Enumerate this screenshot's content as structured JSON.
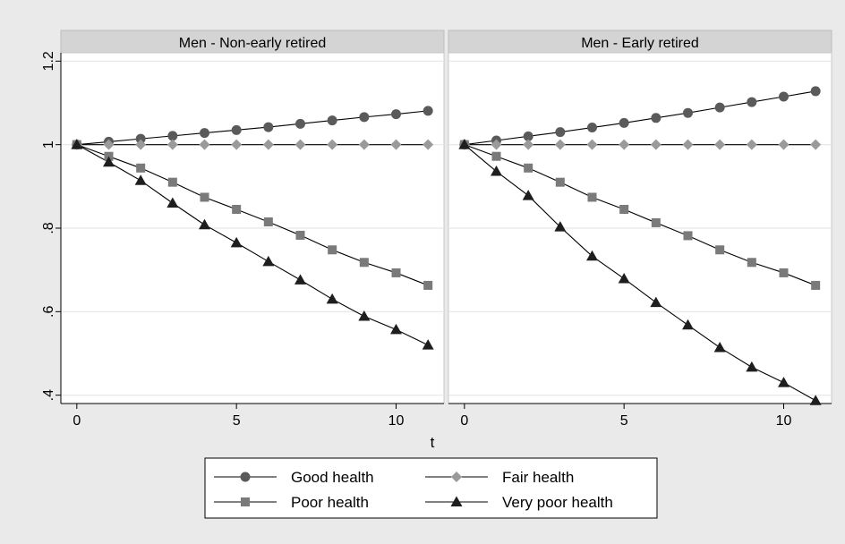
{
  "chart_data": {
    "type": "line",
    "xlabel": "t",
    "ylabel": "",
    "xlim": [
      -0.5,
      11.5
    ],
    "ylim": [
      0.38,
      1.22
    ],
    "x_ticks": [
      0,
      5,
      10
    ],
    "y_ticks": [
      0.4,
      0.6,
      0.8,
      1.0,
      1.2
    ],
    "x_tick_labels": [
      "0",
      "5",
      "10"
    ],
    "y_tick_labels": [
      ".4",
      ".6",
      ".8",
      "1",
      "1.2"
    ],
    "grid": true,
    "legend_position": "bottom-center",
    "x": [
      0,
      1,
      2,
      3,
      4,
      5,
      6,
      7,
      8,
      9,
      10,
      11
    ],
    "series_styles": [
      {
        "marker": "circle",
        "color": "#5a5a5a"
      },
      {
        "marker": "diamond",
        "color": "#9a9a9a"
      },
      {
        "marker": "square",
        "color": "#7a7a7a"
      },
      {
        "marker": "triangle",
        "color": "#1e1e1e"
      }
    ],
    "panels": [
      {
        "title": "Men - Non-early retired",
        "series": [
          {
            "name": "Good health",
            "values": [
              1.0,
              1.007,
              1.014,
              1.021,
              1.028,
              1.035,
              1.042,
              1.05,
              1.058,
              1.066,
              1.073,
              1.081
            ]
          },
          {
            "name": "Fair health",
            "values": [
              1.0,
              1.0,
              1.0,
              1.0,
              1.0,
              1.0,
              1.0,
              1.0,
              1.0,
              1.0,
              1.0,
              1.0
            ]
          },
          {
            "name": "Poor health",
            "values": [
              1.0,
              0.972,
              0.944,
              0.91,
              0.874,
              0.845,
              0.815,
              0.783,
              0.748,
              0.718,
              0.693,
              0.663
            ]
          },
          {
            "name": "Very poor health",
            "values": [
              1.0,
              0.958,
              0.914,
              0.86,
              0.808,
              0.765,
              0.72,
              0.676,
              0.63,
              0.589,
              0.557,
              0.52
            ]
          }
        ]
      },
      {
        "title": "Men - Early retired",
        "series": [
          {
            "name": "Good health",
            "values": [
              1.0,
              1.01,
              1.02,
              1.03,
              1.041,
              1.052,
              1.064,
              1.076,
              1.089,
              1.102,
              1.115,
              1.128
            ]
          },
          {
            "name": "Fair health",
            "values": [
              1.0,
              1.0,
              1.0,
              1.0,
              1.0,
              1.0,
              1.0,
              1.0,
              1.0,
              1.0,
              1.0,
              1.0
            ]
          },
          {
            "name": "Poor health",
            "values": [
              1.0,
              0.972,
              0.944,
              0.91,
              0.874,
              0.845,
              0.813,
              0.782,
              0.748,
              0.718,
              0.693,
              0.663
            ]
          },
          {
            "name": "Very poor health",
            "values": [
              1.0,
              0.936,
              0.878,
              0.803,
              0.733,
              0.679,
              0.622,
              0.568,
              0.514,
              0.467,
              0.43,
              0.387
            ]
          }
        ]
      }
    ]
  }
}
